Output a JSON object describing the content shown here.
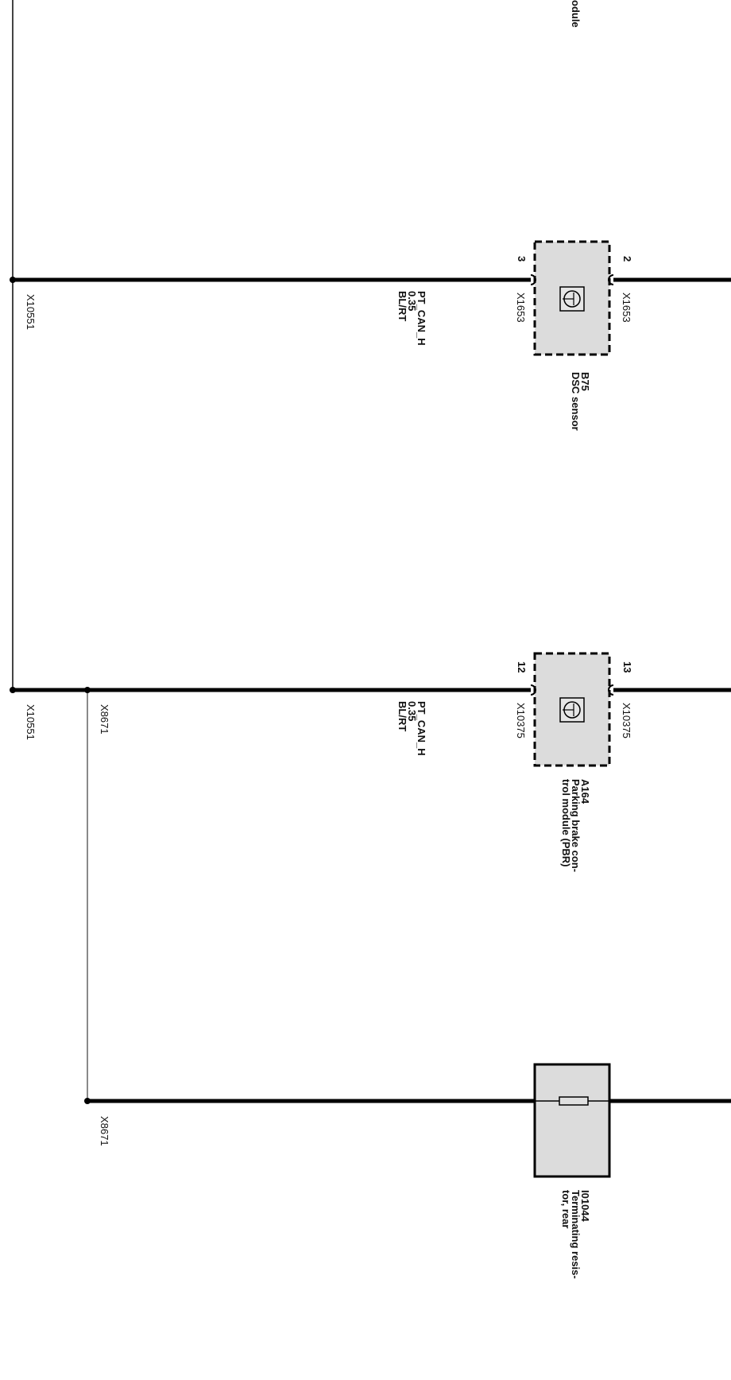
{
  "partial_label_top": "odule",
  "colors": {
    "wire": "#000000",
    "component_fill": "#dcdcdc",
    "shield_line": "#555555",
    "branch_line": "#8a8a8a"
  },
  "splices": [
    {
      "id": "X10551",
      "label": "X10551"
    },
    {
      "id": "X10551b",
      "label": "X10551"
    },
    {
      "id": "X8671",
      "label": "X8671"
    },
    {
      "id": "X8671b",
      "label": "X8671"
    }
  ],
  "wires": [
    {
      "signal": "PT_CAN_H",
      "gauge": "0.35",
      "color_code": "BL/RT"
    },
    {
      "signal": "PT_CAN_H",
      "gauge": "0.35",
      "color_code": "BL/RT"
    }
  ],
  "components": [
    {
      "id": "B75",
      "name": "DSC sensor",
      "icon": "sensor-icon",
      "border": "dashed",
      "pin_in": "3",
      "connector_in": "X1653",
      "pin_out": "2",
      "connector_out": "X1653"
    },
    {
      "id": "A164",
      "name_line1": "Parking brake con-",
      "name_line2": "trol module (PBR)",
      "icon": "sensor-icon",
      "border": "dashed",
      "pin_in": "12",
      "connector_in": "X10375",
      "pin_out": "13",
      "connector_out": "X10375"
    },
    {
      "id": "I01044",
      "name_line1": "Terminating resis-",
      "name_line2": "tor, rear",
      "icon": "resistor-icon",
      "border": "solid"
    }
  ]
}
